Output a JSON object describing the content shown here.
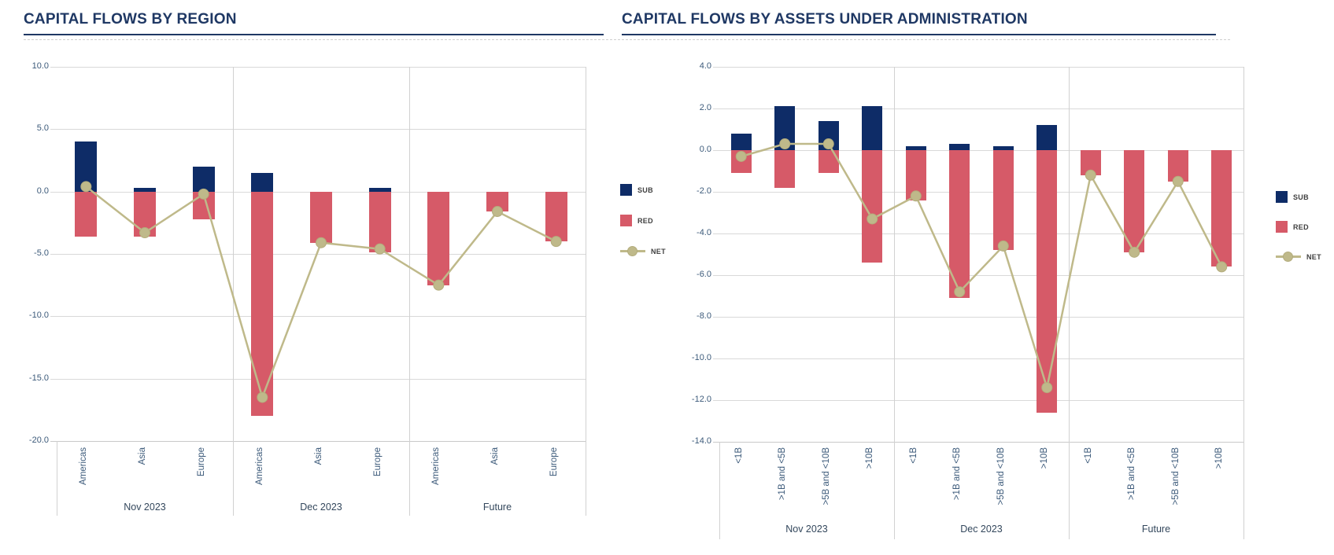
{
  "page": {
    "background": "#ffffff"
  },
  "colors": {
    "title": "#1f3864",
    "title_rule": "#1f3864",
    "tick_text": "#3c5a7a",
    "category_text": "#3c5a7a",
    "group_text": "#33475c",
    "gridline": "#d9d9d9",
    "divider": "#d1d1d1",
    "axis_line": "#c9c9c9",
    "sub": "#0e2c67",
    "red": "#d65a68",
    "net": "#bfb98a",
    "net_marker_edge": "#b3ac7c",
    "legend_text": "#404040"
  },
  "chart_data": [
    {
      "type": "bar",
      "title": "CAPITAL FLOWS BY REGION",
      "ylim": [
        -20,
        10
      ],
      "ytick_step": 5,
      "ytick_labels": [
        "10.0",
        "5.0",
        "0.0",
        "-5.0",
        "-10.0",
        "-15.0",
        "-20.0"
      ],
      "grid": true,
      "legend_position": "right",
      "legend": [
        "SUB",
        "RED",
        "NET"
      ],
      "group_labels": [
        "Nov 2023",
        "Dec 2023",
        "Future"
      ],
      "categories_per_group": [
        "Americas",
        "Asia",
        "Europe"
      ],
      "series": [
        {
          "name": "SUB",
          "kind": "bar",
          "color_key": "sub",
          "values": [
            4.0,
            0.3,
            2.0,
            1.5,
            0.0,
            0.3,
            0.0,
            0.0,
            0.0
          ]
        },
        {
          "name": "RED",
          "kind": "bar",
          "color_key": "red",
          "values": [
            -3.6,
            -3.6,
            -2.2,
            -18.0,
            -4.1,
            -4.9,
            -7.5,
            -1.6,
            -4.0
          ]
        },
        {
          "name": "NET",
          "kind": "line",
          "color_key": "net",
          "values": [
            0.4,
            -3.3,
            -0.2,
            -16.5,
            -4.1,
            -4.6,
            -7.5,
            -1.6,
            -4.0
          ]
        }
      ]
    },
    {
      "type": "bar",
      "title": "CAPITAL FLOWS BY ASSETS UNDER ADMINISTRATION",
      "ylim": [
        -14,
        4
      ],
      "ytick_step": 2,
      "ytick_labels": [
        "4.0",
        "2.0",
        "0.0",
        "-2.0",
        "-4.0",
        "-6.0",
        "-8.0",
        "-10.0",
        "-12.0",
        "-14.0"
      ],
      "grid": true,
      "legend_position": "right",
      "legend": [
        "SUB",
        "RED",
        "NET"
      ],
      "group_labels": [
        "Nov 2023",
        "Dec 2023",
        "Future"
      ],
      "categories_per_group": [
        "<1B",
        ">1B and <5B",
        ">5B and <10B",
        ">10B"
      ],
      "series": [
        {
          "name": "SUB",
          "kind": "bar",
          "color_key": "sub",
          "values": [
            0.8,
            2.1,
            1.4,
            2.1,
            0.2,
            0.3,
            0.2,
            1.2,
            0.0,
            0.0,
            0.0,
            0.0
          ]
        },
        {
          "name": "RED",
          "kind": "bar",
          "color_key": "red",
          "values": [
            -1.1,
            -1.8,
            -1.1,
            -5.4,
            -2.4,
            -7.1,
            -4.8,
            -12.6,
            -1.2,
            -4.9,
            -1.5,
            -5.6
          ]
        },
        {
          "name": "NET",
          "kind": "line",
          "color_key": "net",
          "values": [
            -0.3,
            0.3,
            0.3,
            -3.3,
            -2.2,
            -6.8,
            -4.6,
            -11.4,
            -1.2,
            -4.9,
            -1.5,
            -5.6
          ]
        }
      ]
    }
  ]
}
